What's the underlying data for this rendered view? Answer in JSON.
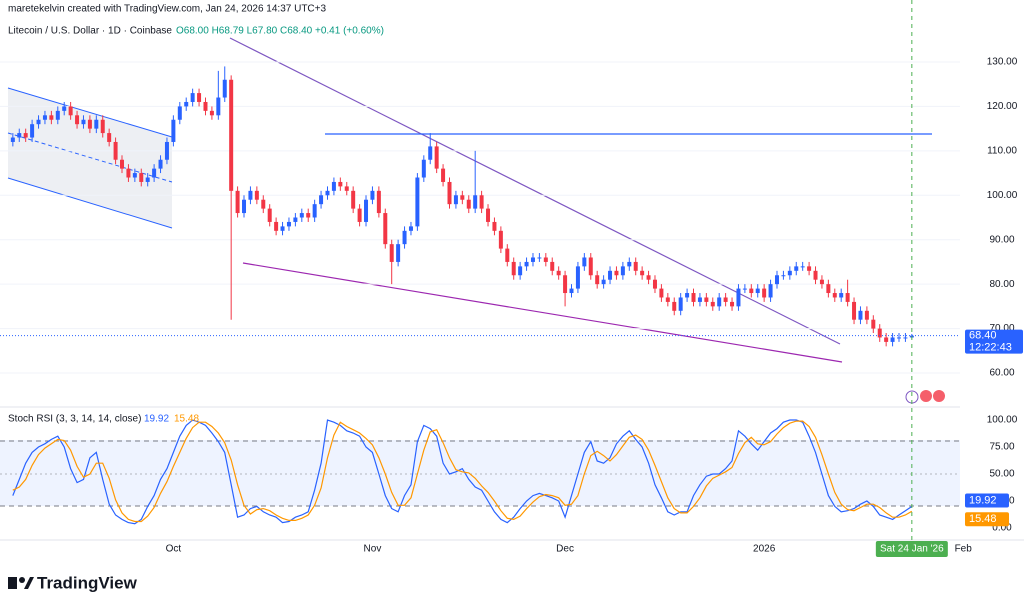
{
  "header": "maretekelvin created with TradingView.com, Jan 24, 2026 14:37 UTC+3",
  "brand": "TradingView",
  "chart_data": [
    {
      "type": "candlestick",
      "title": "Litecoin / U.S. Dollar · 1D · Coinbase",
      "ohlc_text": "O68.00 H68.79 L67.80 C68.40 +0.41 (+0.60%)",
      "price_label": "68.40",
      "countdown": "12:22:43",
      "up_color": "#2962ff",
      "down_color": "#f23645",
      "grid": true,
      "xlim": [
        -2,
        147.5
      ],
      "xticks": [
        {
          "value": 25,
          "label": "Oct"
        },
        {
          "value": 56,
          "label": "Nov"
        },
        {
          "value": 86,
          "label": "Dec"
        },
        {
          "value": 117,
          "label": "2026"
        },
        {
          "value": 148,
          "label": "Feb"
        }
      ],
      "crosshair": {
        "value": 140,
        "label": "Sat 24 Jan '26"
      },
      "ylim": [
        52.8,
        139.45
      ],
      "yticks": [
        {
          "value": 60,
          "label": "60.00"
        },
        {
          "value": 70,
          "label": "70.00"
        },
        {
          "value": 80,
          "label": "80.00"
        },
        {
          "value": 90,
          "label": "90.00"
        },
        {
          "value": 100,
          "label": "100.00"
        },
        {
          "value": 110,
          "label": "110.00"
        },
        {
          "value": 120,
          "label": "120.00"
        },
        {
          "value": 130,
          "label": "130.00"
        }
      ],
      "open": [
        112,
        113,
        114,
        113,
        116,
        117,
        118,
        117,
        119,
        120,
        118,
        116,
        117,
        115,
        117,
        114,
        112,
        108,
        106,
        104,
        105,
        103,
        104,
        106,
        108,
        112,
        117,
        120,
        121,
        123,
        121,
        119,
        118,
        122,
        126,
        101,
        96,
        99,
        101,
        99,
        97,
        94,
        92,
        93,
        94,
        95,
        96,
        95,
        98,
        100,
        101,
        103,
        102,
        101,
        97,
        94,
        99,
        101,
        96,
        89,
        85,
        89,
        92,
        93,
        104,
        108,
        111,
        106,
        103,
        98,
        100,
        99,
        97,
        100,
        97,
        94,
        92,
        88,
        85,
        82,
        84,
        85,
        86,
        86,
        85,
        83,
        82,
        78,
        79,
        84,
        86,
        82,
        80,
        81,
        83,
        82,
        84,
        85,
        83,
        82,
        81,
        79,
        77,
        76,
        74,
        77,
        78,
        76,
        77,
        76,
        75,
        77,
        76,
        75,
        79,
        79,
        78,
        79,
        77,
        80,
        82,
        82,
        83,
        84,
        84,
        83,
        81,
        80,
        78,
        77,
        78,
        76,
        72,
        74,
        72,
        70,
        68,
        67,
        68,
        68,
        68.0
      ],
      "high": [
        114,
        115,
        115,
        117,
        118,
        119,
        119,
        120,
        121,
        121,
        119,
        118,
        118,
        118,
        118,
        115,
        113,
        109,
        107,
        106,
        106,
        105,
        107,
        109,
        113,
        118,
        121,
        122,
        124,
        124,
        122,
        120,
        128,
        129,
        127,
        102,
        100,
        102,
        102,
        100,
        98,
        95,
        94,
        95,
        96,
        97,
        97,
        99,
        101,
        102,
        104,
        104,
        103,
        102,
        98,
        100,
        102,
        102,
        97,
        90,
        90,
        93,
        94,
        105,
        109,
        114,
        112,
        107,
        104,
        101,
        101,
        100,
        110,
        101,
        98,
        95,
        93,
        89,
        86,
        85,
        86,
        87,
        87,
        87,
        86,
        84,
        83,
        80,
        85,
        87,
        87,
        83,
        82,
        84,
        84,
        85,
        86,
        86,
        84,
        83,
        82,
        80,
        78,
        77,
        78,
        79,
        79,
        78,
        78,
        77,
        78,
        78,
        77,
        80,
        80,
        80,
        80,
        80,
        81,
        83,
        83,
        84,
        85,
        85,
        85,
        84,
        82,
        81,
        79,
        79,
        81,
        77,
        75,
        75,
        73,
        71,
        69,
        69,
        69,
        69,
        68.79
      ],
      "low": [
        111,
        112,
        112,
        112,
        115,
        116,
        116,
        116,
        118,
        117,
        115,
        115,
        114,
        114,
        113,
        111,
        107,
        105,
        103,
        103,
        102,
        102,
        103,
        105,
        107,
        111,
        116,
        119,
        120,
        120,
        118,
        117,
        117,
        121,
        72,
        95,
        95,
        98,
        98,
        96,
        93,
        91,
        91,
        92,
        93,
        94,
        94,
        94,
        97,
        99,
        100,
        101,
        100,
        96,
        93,
        93,
        98,
        95,
        88,
        80,
        84,
        88,
        91,
        92,
        103,
        107,
        105,
        102,
        97,
        97,
        98,
        96,
        96,
        96,
        93,
        91,
        87,
        84,
        81,
        81,
        83,
        84,
        85,
        84,
        82,
        81,
        75,
        77,
        78,
        83,
        81,
        79,
        79,
        80,
        81,
        81,
        83,
        82,
        81,
        80,
        78,
        76,
        75,
        73,
        73,
        76,
        75,
        75,
        75,
        74,
        74,
        75,
        74,
        74,
        78,
        77,
        77,
        76,
        76,
        79,
        81,
        81,
        82,
        83,
        82,
        80,
        79,
        77,
        76,
        76,
        75,
        71,
        71,
        71,
        69,
        67,
        66,
        66,
        67,
        67,
        67.8
      ],
      "close": [
        113,
        114,
        113,
        116,
        117,
        118,
        117,
        119,
        120,
        118,
        116,
        117,
        115,
        117,
        114,
        112,
        108,
        106,
        104,
        105,
        103,
        104,
        106,
        108,
        112,
        117,
        120,
        121,
        123,
        121,
        119,
        118,
        122,
        126,
        101,
        96,
        99,
        101,
        99,
        97,
        94,
        92,
        93,
        94,
        95,
        96,
        95,
        98,
        100,
        101,
        103,
        102,
        101,
        97,
        94,
        99,
        101,
        96,
        89,
        85,
        89,
        92,
        93,
        104,
        108,
        111,
        106,
        103,
        98,
        100,
        99,
        97,
        100,
        97,
        94,
        92,
        88,
        85,
        82,
        84,
        85,
        86,
        86,
        85,
        83,
        82,
        78,
        79,
        84,
        86,
        82,
        80,
        81,
        83,
        82,
        84,
        85,
        83,
        82,
        81,
        79,
        77,
        76,
        74,
        77,
        78,
        76,
        77,
        76,
        75,
        77,
        76,
        75,
        79,
        79,
        78,
        79,
        77,
        80,
        82,
        82,
        83,
        84,
        84,
        83,
        81,
        80,
        78,
        77,
        78,
        76,
        72,
        74,
        72,
        70,
        68,
        67,
        68,
        68,
        68,
        68.4
      ]
    },
    {
      "type": "line",
      "title": "Stoch RSI (3, 3, 14, 14, close)",
      "ylim": [
        -11.1,
        111.1
      ],
      "yticks": [
        {
          "value": 0,
          "label": "0.00"
        },
        {
          "value": 25,
          "label": "25.00"
        },
        {
          "value": 50,
          "label": "50.00"
        },
        {
          "value": 75,
          "label": "75.00"
        },
        {
          "value": 100,
          "label": "100.00"
        }
      ],
      "series": [
        {
          "color": "#2962ff",
          "values": [
            30,
            45,
            60,
            70,
            75,
            78,
            82,
            85,
            75,
            55,
            42,
            45,
            65,
            70,
            45,
            22,
            12,
            8,
            5,
            4,
            8,
            20,
            30,
            45,
            55,
            70,
            85,
            95,
            100,
            98,
            95,
            88,
            80,
            70,
            40,
            10,
            12,
            18,
            20,
            15,
            12,
            10,
            5,
            6,
            10,
            12,
            15,
            35,
            60,
            100,
            98,
            95,
            90,
            88,
            85,
            75,
            70,
            50,
            30,
            18,
            15,
            30,
            40,
            80,
            95,
            92,
            85,
            60,
            50,
            52,
            55,
            45,
            38,
            35,
            25,
            15,
            8,
            5,
            10,
            18,
            25,
            30,
            32,
            30,
            28,
            25,
            10,
            30,
            50,
            70,
            80,
            62,
            60,
            65,
            78,
            85,
            90,
            82,
            75,
            60,
            40,
            28,
            15,
            12,
            15,
            15,
            30,
            40,
            48,
            50,
            50,
            55,
            62,
            90,
            85,
            78,
            72,
            80,
            88,
            92,
            98,
            100,
            100,
            98,
            85,
            70,
            50,
            30,
            20,
            15,
            16,
            18,
            22,
            25,
            20,
            12,
            10,
            8,
            12,
            16,
            19.92
          ]
        },
        {
          "color": "#ff9800",
          "values": [
            35,
            38,
            45,
            58,
            68,
            74,
            78,
            82,
            81,
            72,
            57,
            47,
            50,
            60,
            60,
            46,
            26,
            14,
            8,
            6,
            6,
            11,
            19,
            32,
            43,
            57,
            70,
            83,
            93,
            98,
            98,
            94,
            88,
            79,
            63,
            40,
            21,
            13,
            17,
            18,
            16,
            12,
            9,
            7,
            7,
            9,
            12,
            21,
            37,
            65,
            86,
            98,
            94,
            91,
            88,
            83,
            77,
            65,
            50,
            33,
            21,
            21,
            28,
            50,
            72,
            89,
            91,
            79,
            65,
            54,
            52,
            51,
            46,
            39,
            33,
            25,
            16,
            9,
            8,
            11,
            18,
            24,
            29,
            31,
            30,
            28,
            21,
            22,
            30,
            50,
            67,
            71,
            67,
            62,
            68,
            76,
            84,
            86,
            82,
            72,
            58,
            43,
            28,
            18,
            14,
            14,
            20,
            28,
            39,
            46,
            49,
            52,
            56,
            69,
            79,
            84,
            78,
            77,
            80,
            87,
            93,
            97,
            99,
            99,
            94,
            84,
            68,
            50,
            33,
            22,
            17,
            16,
            19,
            22,
            22,
            19,
            14,
            10,
            10,
            12,
            15.48
          ]
        }
      ]
    }
  ]
}
